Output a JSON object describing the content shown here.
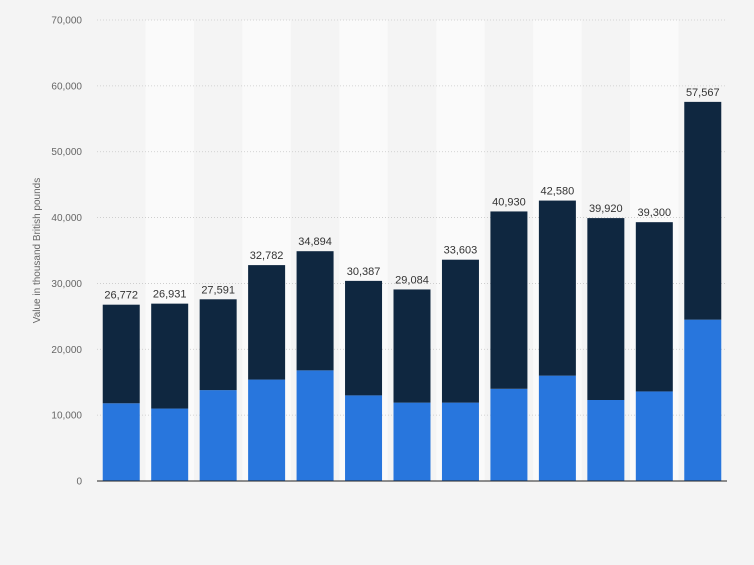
{
  "chart_data": {
    "type": "bar",
    "stacked": true,
    "title": "",
    "xlabel": "",
    "ylabel": "Value in thousand British pounds",
    "ylim": [
      0,
      70000
    ],
    "yticks": [
      0,
      10000,
      20000,
      30000,
      40000,
      50000,
      60000,
      70000
    ],
    "ytick_labels": [
      "0",
      "10,000",
      "20,000",
      "30,000",
      "40,000",
      "50,000",
      "60,000",
      "70,000"
    ],
    "grid": true,
    "grid_style": "dotted",
    "categories": [
      "",
      "",
      "",
      "",
      "",
      "",
      "",
      "",
      "",
      "",
      "",
      "",
      ""
    ],
    "series": [
      {
        "color": "#2876dd",
        "values": [
          11800,
          11000,
          13800,
          15400,
          16800,
          13000,
          11900,
          11900,
          14000,
          16000,
          12300,
          13600,
          24500
        ]
      },
      {
        "color": "#0f2740",
        "values": [
          14972,
          15931,
          13791,
          17382,
          18094,
          17387,
          17184,
          21703,
          26930,
          26580,
          27620,
          25700,
          33067
        ]
      }
    ],
    "totals": [
      26772,
      26931,
      27591,
      32782,
      34894,
      30387,
      29084,
      33603,
      40930,
      42580,
      39920,
      39300,
      57567
    ],
    "total_labels": [
      "26,772",
      "26,931",
      "27,591",
      "32,782",
      "34,894",
      "30,387",
      "29,084",
      "33,603",
      "40,930",
      "42,580",
      "39,920",
      "39,300",
      "57,567"
    ]
  }
}
